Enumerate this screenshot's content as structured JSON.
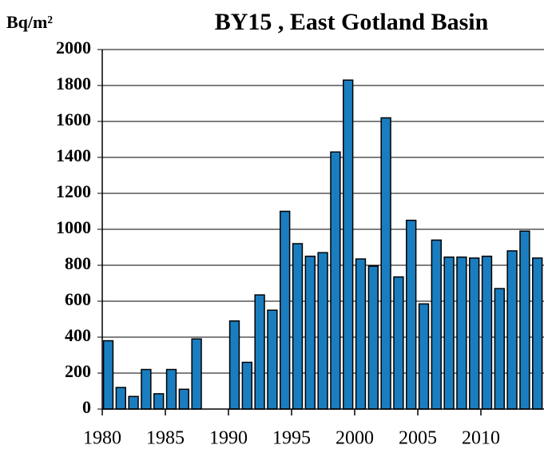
{
  "chart_data": {
    "type": "bar",
    "title": "BY15 , East Gotland Basin",
    "y_label": "Bq/m²",
    "x": [
      1980,
      1981,
      1982,
      1983,
      1984,
      1985,
      1986,
      1987,
      1990,
      1991,
      1992,
      1993,
      1994,
      1995,
      1996,
      1997,
      1998,
      1999,
      2000,
      2001,
      2002,
      2003,
      2004,
      2005,
      2006,
      2007,
      2008,
      2009,
      2010,
      2011,
      2012,
      2013,
      2014
    ],
    "values": [
      380,
      120,
      70,
      220,
      85,
      220,
      110,
      390,
      490,
      260,
      635,
      550,
      1100,
      920,
      850,
      870,
      1430,
      1830,
      835,
      795,
      1620,
      735,
      1050,
      585,
      940,
      845,
      845,
      840,
      850,
      670,
      880,
      990,
      840
    ],
    "color": "#1a7dbf",
    "xlim": [
      1980,
      2015
    ],
    "xticks": [
      1980,
      1985,
      1990,
      1995,
      2000,
      2005,
      2010
    ],
    "ylim": [
      0,
      2000
    ],
    "yticks": [
      0,
      200,
      400,
      600,
      800,
      1000,
      1200,
      1400,
      1600,
      1800,
      2000
    ],
    "grid": true
  }
}
